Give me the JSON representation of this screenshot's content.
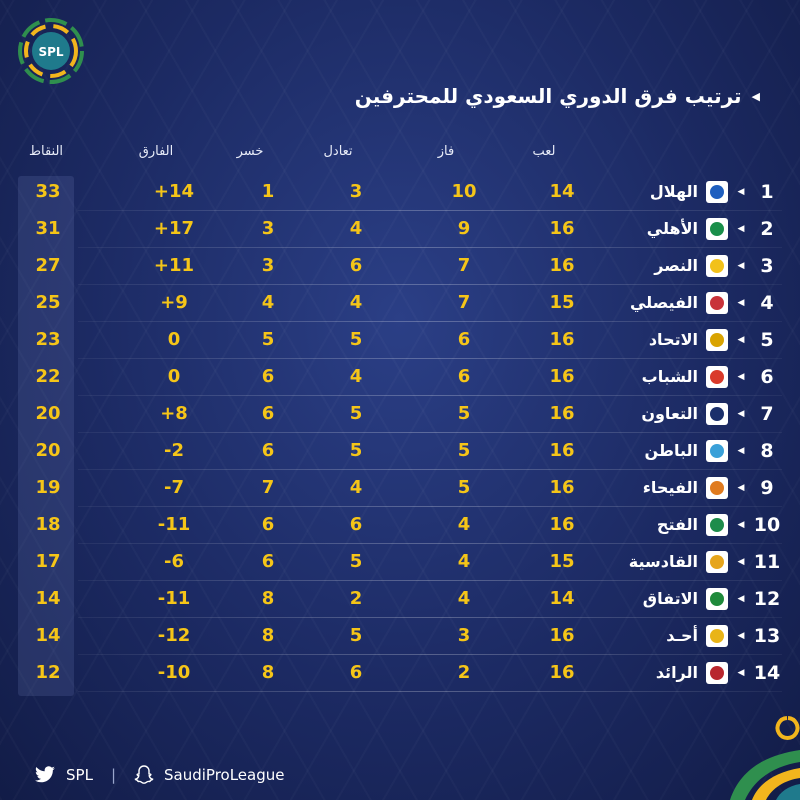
{
  "logo": {
    "text": "SPL"
  },
  "title": "ترتيب فرق الدوري السعودي للمحترفين",
  "headers": {
    "played": "لعب",
    "won": "فاز",
    "drawn": "تعادل",
    "lost": "خسر",
    "diff": "الفارق",
    "points": "النقاط"
  },
  "rows": [
    {
      "rank": "1",
      "team": "الهلال",
      "played": "14",
      "won": "10",
      "drawn": "3",
      "lost": "1",
      "diff": "+14",
      "points": "33",
      "color": "#1f5fbf"
    },
    {
      "rank": "2",
      "team": "الأهلي",
      "played": "16",
      "won": "9",
      "drawn": "4",
      "lost": "3",
      "diff": "+17",
      "points": "31",
      "color": "#1a8f4a"
    },
    {
      "rank": "3",
      "team": "النصر",
      "played": "16",
      "won": "7",
      "drawn": "6",
      "lost": "3",
      "diff": "+11",
      "points": "27",
      "color": "#f2c11a"
    },
    {
      "rank": "4",
      "team": "الفيصلي",
      "played": "15",
      "won": "7",
      "drawn": "4",
      "lost": "4",
      "diff": "+9",
      "points": "25",
      "color": "#c8323a"
    },
    {
      "rank": "5",
      "team": "الاتحاد",
      "played": "16",
      "won": "6",
      "drawn": "5",
      "lost": "5",
      "diff": "0",
      "points": "23",
      "color": "#d9a300"
    },
    {
      "rank": "6",
      "team": "الشباب",
      "played": "16",
      "won": "6",
      "drawn": "4",
      "lost": "6",
      "diff": "0",
      "points": "22",
      "color": "#d93a2b"
    },
    {
      "rank": "7",
      "team": "التعاون",
      "played": "16",
      "won": "5",
      "drawn": "5",
      "lost": "6",
      "diff": "+8",
      "points": "20",
      "color": "#1b2f6b"
    },
    {
      "rank": "8",
      "team": "الباطن",
      "played": "16",
      "won": "5",
      "drawn": "5",
      "lost": "6",
      "diff": "-2",
      "points": "20",
      "color": "#3aa0d8"
    },
    {
      "rank": "9",
      "team": "الفيحاء",
      "played": "16",
      "won": "5",
      "drawn": "4",
      "lost": "7",
      "diff": "-7",
      "points": "19",
      "color": "#e07b1f"
    },
    {
      "rank": "10",
      "team": "الفتح",
      "played": "16",
      "won": "4",
      "drawn": "6",
      "lost": "6",
      "diff": "-11",
      "points": "18",
      "color": "#1e8c4b"
    },
    {
      "rank": "11",
      "team": "القادسية",
      "played": "15",
      "won": "4",
      "drawn": "5",
      "lost": "6",
      "diff": "-6",
      "points": "17",
      "color": "#e6a51c"
    },
    {
      "rank": "12",
      "team": "الاتفاق",
      "played": "14",
      "won": "4",
      "drawn": "2",
      "lost": "8",
      "diff": "-11",
      "points": "14",
      "color": "#1f8a3b"
    },
    {
      "rank": "13",
      "team": "أحـد",
      "played": "16",
      "won": "3",
      "drawn": "5",
      "lost": "8",
      "diff": "-12",
      "points": "14",
      "color": "#e9b417"
    },
    {
      "rank": "14",
      "team": "الرائد",
      "played": "16",
      "won": "2",
      "drawn": "6",
      "lost": "8",
      "diff": "-10",
      "points": "12",
      "color": "#b8262e"
    }
  ],
  "footer": {
    "twitter": "SPL",
    "snapchat": "SaudiProLeague"
  },
  "colors": {
    "accent": "#f5c518",
    "background": "#1c2a63"
  }
}
